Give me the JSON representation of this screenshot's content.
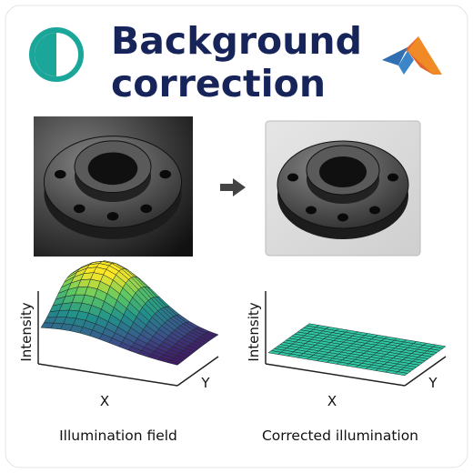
{
  "header": {
    "title_lines": [
      "Background",
      "correction"
    ]
  },
  "panels": [
    {
      "caption": "Illumination field",
      "y_label": "Intensity",
      "x_label": "X",
      "z_label": "Y"
    },
    {
      "caption": "Corrected illumination",
      "y_label": "Intensity",
      "x_label": "X",
      "z_label": "Y"
    }
  ]
}
